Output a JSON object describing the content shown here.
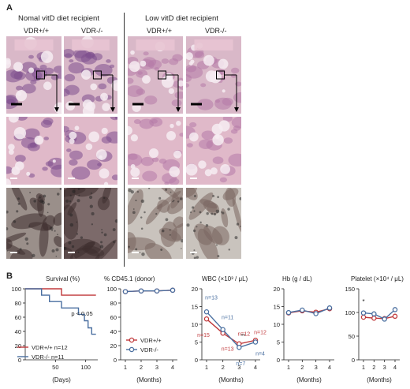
{
  "panel_a": {
    "letter": "A",
    "group_left": "Nomal vitD diet recipient",
    "group_right": "Low vitD diet recipient",
    "genotypes": [
      "VDR+/+",
      "VDR-/-",
      "VDR+/+",
      "VDR-/-"
    ]
  },
  "panel_b": {
    "letter": "B"
  },
  "chart_data": [
    {
      "type": "line",
      "title": "Survival (%)",
      "xlabel": "(Days)",
      "ylabel": "",
      "xlim": [
        0,
        120
      ],
      "ylim": [
        0,
        100
      ],
      "x_ticks": [
        50,
        100
      ],
      "y_ticks": [
        0,
        20,
        40,
        60,
        80,
        100
      ],
      "series": [
        {
          "name": "VDR+/+ n=12",
          "color": "#c0393b",
          "points": [
            [
              0,
              100
            ],
            [
              60,
              100
            ],
            [
              60,
              91
            ],
            [
              117,
              91
            ]
          ]
        },
        {
          "name": "VDR-/- n=11",
          "color": "#4a6fa0",
          "points": [
            [
              0,
              100
            ],
            [
              27,
              100
            ],
            [
              27,
              91
            ],
            [
              40,
              91
            ],
            [
              40,
              82
            ],
            [
              60,
              82
            ],
            [
              60,
              73
            ],
            [
              88,
              73
            ],
            [
              88,
              64
            ],
            [
              98,
              64
            ],
            [
              98,
              55
            ],
            [
              104,
              55
            ],
            [
              104,
              45
            ],
            [
              110,
              45
            ],
            [
              110,
              36
            ],
            [
              117,
              36
            ]
          ]
        }
      ],
      "annotations": [
        "p < 0.05"
      ]
    },
    {
      "type": "line",
      "title": "% CD45.1 (donor)",
      "xlabel": "(Months)",
      "x": [
        1,
        2,
        3,
        4
      ],
      "ylim": [
        0,
        100
      ],
      "y_ticks": [
        0,
        20,
        40,
        60,
        80,
        100
      ],
      "series": [
        {
          "name": "VDR+/+",
          "color": "#c0393b",
          "values": [
            96,
            97,
            97,
            98
          ]
        },
        {
          "name": "VDR-/-",
          "color": "#4a6fa0",
          "values": [
            96,
            97,
            97,
            98
          ]
        }
      ]
    },
    {
      "type": "line",
      "title": "WBC (×10³ / μL)",
      "xlabel": "(Months)",
      "x": [
        1,
        2,
        3,
        4
      ],
      "ylim": [
        0,
        20
      ],
      "y_ticks": [
        0,
        5,
        10,
        15,
        20
      ],
      "series": [
        {
          "name": "VDR+/+",
          "color": "#c0393b",
          "values": [
            11.5,
            7.5,
            4.5,
            5.5
          ]
        },
        {
          "name": "VDR-/-",
          "color": "#4a6fa0",
          "values": [
            13.5,
            8.5,
            3.5,
            5.0
          ]
        }
      ],
      "annotations": [
        "n=13",
        "n=15",
        "n=11",
        "n=13",
        "n=12",
        "n=7",
        "n=12",
        "n=4",
        "**"
      ]
    },
    {
      "type": "line",
      "title": "Hb (g / dL)",
      "xlabel": "(Months)",
      "x": [
        1,
        2,
        3,
        4
      ],
      "ylim": [
        0,
        20
      ],
      "y_ticks": [
        0,
        5,
        10,
        15,
        20
      ],
      "series": [
        {
          "name": "VDR+/+",
          "color": "#c0393b",
          "values": [
            13.2,
            13.8,
            13.4,
            14.4
          ]
        },
        {
          "name": "VDR-/-",
          "color": "#4a6fa0",
          "values": [
            13.3,
            14.0,
            13.0,
            14.6
          ]
        }
      ]
    },
    {
      "type": "line",
      "title": "Platelet (×10⁴ / μL)",
      "xlabel": "(Months)",
      "x": [
        1,
        2,
        3,
        4
      ],
      "ylim": [
        0,
        150
      ],
      "y_ticks": [
        0,
        50,
        100,
        150
      ],
      "series": [
        {
          "name": "VDR+/+",
          "color": "#c0393b",
          "values": [
            90,
            88,
            87,
            92
          ]
        },
        {
          "name": "VDR-/-",
          "color": "#4a6fa0",
          "values": [
            99,
            97,
            86,
            106
          ]
        }
      ],
      "annotations": [
        "*"
      ]
    }
  ]
}
